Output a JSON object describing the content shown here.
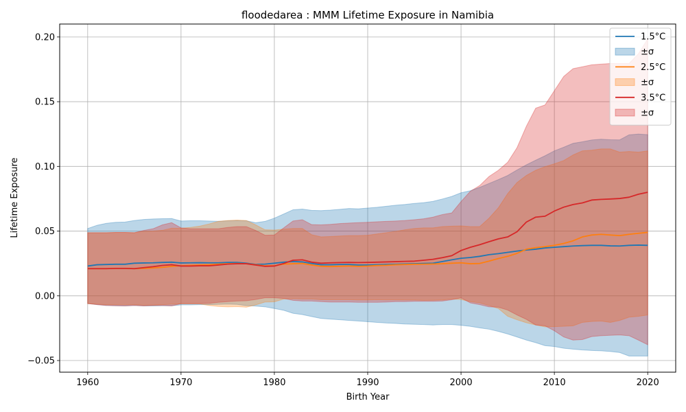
{
  "chart_data": {
    "type": "line",
    "title": "floodedarea : MMM Lifetime Exposure in Namibia",
    "xlabel": "Birth Year",
    "ylabel": "Lifetime Exposure",
    "xlim": [
      1957,
      2023
    ],
    "ylim": [
      -0.059,
      0.21
    ],
    "xticks": [
      1960,
      1970,
      1980,
      1990,
      2000,
      2010,
      2020
    ],
    "yticks": [
      -0.05,
      0.0,
      0.05,
      0.1,
      0.15,
      0.2
    ],
    "ytick_labels": [
      "−0.05",
      "0.00",
      "0.05",
      "0.10",
      "0.15",
      "0.20"
    ],
    "grid": true,
    "legend": "top-right",
    "x": [
      1960,
      1961,
      1962,
      1963,
      1964,
      1965,
      1966,
      1967,
      1968,
      1969,
      1970,
      1971,
      1972,
      1973,
      1974,
      1975,
      1976,
      1977,
      1978,
      1979,
      1980,
      1981,
      1982,
      1983,
      1984,
      1985,
      1986,
      1987,
      1988,
      1989,
      1990,
      1991,
      1992,
      1993,
      1994,
      1995,
      1996,
      1997,
      1998,
      1999,
      2000,
      2001,
      2002,
      2003,
      2004,
      2005,
      2006,
      2007,
      2008,
      2009,
      2010,
      2011,
      2012,
      2013,
      2014,
      2015,
      2016,
      2017,
      2018,
      2019,
      2020
    ],
    "series": [
      {
        "name": "1.5°C",
        "band_name": "±σ",
        "color": "#1f77b4",
        "band_color": "#1f77b4",
        "band_opacity": 0.3,
        "values": [
          0.023,
          0.024,
          0.0242,
          0.0244,
          0.0244,
          0.0252,
          0.0254,
          0.0255,
          0.0258,
          0.026,
          0.0254,
          0.0255,
          0.0256,
          0.0255,
          0.0255,
          0.0258,
          0.0258,
          0.0252,
          0.0243,
          0.0245,
          0.0252,
          0.026,
          0.0265,
          0.0262,
          0.025,
          0.024,
          0.024,
          0.0242,
          0.0242,
          0.0238,
          0.0238,
          0.024,
          0.0242,
          0.0244,
          0.0246,
          0.0248,
          0.025,
          0.0252,
          0.0265,
          0.0278,
          0.029,
          0.0296,
          0.0305,
          0.0318,
          0.0326,
          0.0336,
          0.0346,
          0.0354,
          0.036,
          0.037,
          0.0375,
          0.038,
          0.0385,
          0.0388,
          0.039,
          0.039,
          0.0386,
          0.0385,
          0.039,
          0.0392,
          0.039
        ],
        "upper": [
          0.052,
          0.0545,
          0.056,
          0.0568,
          0.057,
          0.0582,
          0.059,
          0.0594,
          0.0596,
          0.0597,
          0.0578,
          0.058,
          0.058,
          0.0578,
          0.0576,
          0.058,
          0.0582,
          0.058,
          0.0565,
          0.0575,
          0.06,
          0.0632,
          0.0665,
          0.067,
          0.066,
          0.0658,
          0.0662,
          0.0668,
          0.0675,
          0.0672,
          0.0678,
          0.0684,
          0.0692,
          0.07,
          0.0706,
          0.0714,
          0.072,
          0.073,
          0.0748,
          0.0768,
          0.0796,
          0.0812,
          0.0838,
          0.0868,
          0.0898,
          0.093,
          0.0972,
          0.1012,
          0.1048,
          0.1082,
          0.112,
          0.1148,
          0.1178,
          0.119,
          0.1204,
          0.121,
          0.1206,
          0.1205,
          0.1244,
          0.125,
          0.1245
        ],
        "lower": [
          -0.006,
          -0.0068,
          -0.0075,
          -0.0077,
          -0.0078,
          -0.0075,
          -0.0078,
          -0.0078,
          -0.0077,
          -0.0077,
          -0.007,
          -0.007,
          -0.0068,
          -0.0068,
          -0.0066,
          -0.0064,
          -0.0066,
          -0.0076,
          -0.0079,
          -0.0085,
          -0.0098,
          -0.0112,
          -0.0135,
          -0.0145,
          -0.016,
          -0.0175,
          -0.018,
          -0.0185,
          -0.019,
          -0.0195,
          -0.02,
          -0.0205,
          -0.021,
          -0.0213,
          -0.0218,
          -0.022,
          -0.0222,
          -0.0225,
          -0.0222,
          -0.0222,
          -0.0228,
          -0.0236,
          -0.0248,
          -0.0258,
          -0.0275,
          -0.0295,
          -0.0318,
          -0.0342,
          -0.0362,
          -0.0385,
          -0.0392,
          -0.0405,
          -0.0412,
          -0.0418,
          -0.0422,
          -0.0425,
          -0.043,
          -0.0438,
          -0.0465,
          -0.0465,
          -0.0465
        ]
      },
      {
        "name": "2.5°C",
        "band_name": "±σ",
        "color": "#ff7f0e",
        "band_color": "#ff7f0e",
        "band_opacity": 0.3,
        "values": [
          0.021,
          0.021,
          0.021,
          0.0212,
          0.0212,
          0.021,
          0.0212,
          0.0215,
          0.022,
          0.0228,
          0.0232,
          0.0235,
          0.0238,
          0.024,
          0.0245,
          0.0248,
          0.025,
          0.0248,
          0.024,
          0.0232,
          0.0232,
          0.0245,
          0.0248,
          0.025,
          0.0238,
          0.0228,
          0.0226,
          0.0228,
          0.023,
          0.0228,
          0.023,
          0.0234,
          0.0236,
          0.024,
          0.0242,
          0.0244,
          0.0245,
          0.0246,
          0.0248,
          0.0252,
          0.0255,
          0.0248,
          0.025,
          0.0268,
          0.0288,
          0.0305,
          0.0328,
          0.036,
          0.0372,
          0.038,
          0.039,
          0.0405,
          0.0425,
          0.0455,
          0.047,
          0.0475,
          0.047,
          0.0465,
          0.0475,
          0.0483,
          0.049
        ],
        "upper": [
          0.0488,
          0.0488,
          0.0488,
          0.049,
          0.049,
          0.0488,
          0.0498,
          0.05,
          0.0506,
          0.0522,
          0.0522,
          0.0528,
          0.0538,
          0.0555,
          0.0575,
          0.0582,
          0.0585,
          0.0582,
          0.0548,
          0.051,
          0.0508,
          0.0515,
          0.052,
          0.052,
          0.0472,
          0.0455,
          0.0458,
          0.0462,
          0.0465,
          0.0465,
          0.0468,
          0.0478,
          0.0488,
          0.0498,
          0.051,
          0.052,
          0.0525,
          0.0525,
          0.0535,
          0.0538,
          0.054,
          0.0535,
          0.0535,
          0.06,
          0.068,
          0.079,
          0.0875,
          0.093,
          0.097,
          0.0998,
          0.102,
          0.1045,
          0.1088,
          0.112,
          0.1125,
          0.1135,
          0.1135,
          0.111,
          0.1115,
          0.111,
          0.112
        ],
        "lower": [
          -0.006,
          -0.0065,
          -0.0068,
          -0.0068,
          -0.0068,
          -0.0068,
          -0.0072,
          -0.0072,
          -0.0068,
          -0.0065,
          -0.0062,
          -0.0062,
          -0.0062,
          -0.0075,
          -0.0082,
          -0.0085,
          -0.0083,
          -0.0088,
          -0.007,
          -0.0048,
          -0.0046,
          -0.0025,
          -0.0022,
          -0.0025,
          -0.0025,
          -0.003,
          -0.003,
          -0.003,
          -0.003,
          -0.0032,
          -0.0032,
          -0.003,
          -0.0032,
          -0.0032,
          -0.0033,
          -0.0033,
          -0.0035,
          -0.0034,
          -0.0032,
          -0.0025,
          -0.0028,
          -0.0045,
          -0.0055,
          -0.0075,
          -0.0098,
          -0.0158,
          -0.0185,
          -0.0208,
          -0.0225,
          -0.024,
          -0.0238,
          -0.0235,
          -0.0232,
          -0.0205,
          -0.0198,
          -0.0195,
          -0.0205,
          -0.019,
          -0.0165,
          -0.0158,
          -0.0148
        ]
      },
      {
        "name": "3.5°C",
        "band_name": "±σ",
        "color": "#d62728",
        "band_color": "#d62728",
        "band_opacity": 0.3,
        "values": [
          0.021,
          0.021,
          0.021,
          0.0212,
          0.0212,
          0.021,
          0.0218,
          0.0225,
          0.0235,
          0.024,
          0.023,
          0.023,
          0.0232,
          0.0232,
          0.0238,
          0.0245,
          0.0248,
          0.0248,
          0.0238,
          0.0228,
          0.023,
          0.025,
          0.0275,
          0.0278,
          0.026,
          0.0252,
          0.0255,
          0.0257,
          0.0258,
          0.0257,
          0.0258,
          0.026,
          0.0262,
          0.0264,
          0.0266,
          0.0268,
          0.0275,
          0.0282,
          0.0295,
          0.031,
          0.035,
          0.0375,
          0.0395,
          0.0418,
          0.044,
          0.0455,
          0.0495,
          0.057,
          0.0608,
          0.0615,
          0.0655,
          0.0685,
          0.0705,
          0.0718,
          0.074,
          0.0745,
          0.0748,
          0.0752,
          0.0762,
          0.0785,
          0.08
        ],
        "upper": [
          0.0488,
          0.0488,
          0.0488,
          0.049,
          0.049,
          0.0488,
          0.0505,
          0.0518,
          0.0548,
          0.0565,
          0.0525,
          0.0518,
          0.0518,
          0.0518,
          0.0518,
          0.0528,
          0.0535,
          0.0535,
          0.0505,
          0.0468,
          0.047,
          0.0525,
          0.0578,
          0.0588,
          0.055,
          0.0548,
          0.0552,
          0.0558,
          0.0562,
          0.0565,
          0.0568,
          0.0572,
          0.0575,
          0.0578,
          0.0582,
          0.0588,
          0.0595,
          0.0608,
          0.0628,
          0.064,
          0.0728,
          0.0808,
          0.0852,
          0.0922,
          0.097,
          0.1032,
          0.1145,
          0.131,
          0.145,
          0.1475,
          0.1585,
          0.1695,
          0.1755,
          0.177,
          0.1785,
          0.179,
          0.1795,
          0.1795,
          0.1795,
          0.187,
          0.1985
        ],
        "lower": [
          -0.006,
          -0.0068,
          -0.0075,
          -0.0077,
          -0.0078,
          -0.0075,
          -0.0078,
          -0.0075,
          -0.0075,
          -0.0078,
          -0.006,
          -0.006,
          -0.006,
          -0.0058,
          -0.005,
          -0.0045,
          -0.004,
          -0.0038,
          -0.0028,
          -0.0015,
          -0.0015,
          -0.002,
          -0.0035,
          -0.004,
          -0.004,
          -0.0045,
          -0.0048,
          -0.0048,
          -0.0048,
          -0.005,
          -0.005,
          -0.005,
          -0.0048,
          -0.0045,
          -0.0045,
          -0.0042,
          -0.0042,
          -0.0042,
          -0.004,
          -0.003,
          -0.0015,
          -0.0055,
          -0.0068,
          -0.0085,
          -0.0088,
          -0.011,
          -0.0148,
          -0.0182,
          -0.0225,
          -0.0232,
          -0.027,
          -0.0318,
          -0.0342,
          -0.0338,
          -0.0315,
          -0.0308,
          -0.0305,
          -0.0302,
          -0.0308,
          -0.0342,
          -0.0378
        ]
      }
    ]
  }
}
